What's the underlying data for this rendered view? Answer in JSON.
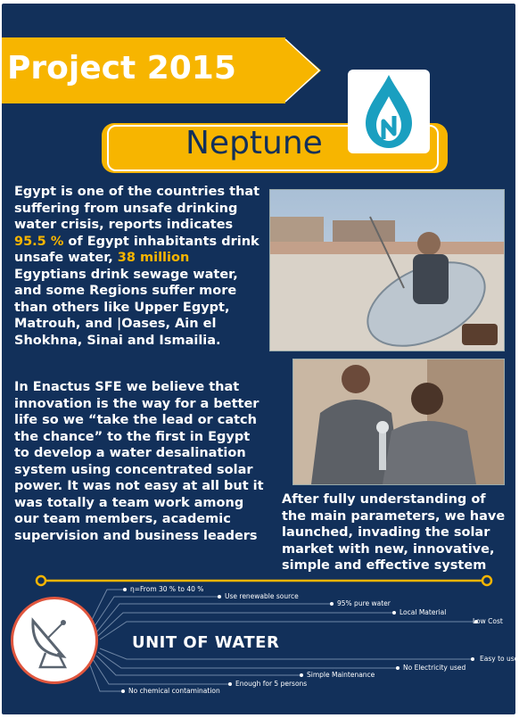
{
  "banner": {
    "title": "Project 2015"
  },
  "brand": {
    "name": "Neptune"
  },
  "intro": {
    "p1_a": "Egypt is one of the countries that suffering from unsafe drinking water crisis, reports indicates ",
    "p1_stat1": "95.5 %",
    "p1_b": " of Egypt inhabitants drink unsafe water, ",
    "p1_stat2": "38 million",
    "p1_c": " Egyptians drink sewage water, and some Regions suffer more than others like Upper Egypt, Matrouh, and |Oases, Ain el Shokhna, Sinai and Ismailia.",
    "p2": "In Enactus SFE we believe that innovation is the way for a better life so we “take the lead or catch the chance” to the first in Egypt to develop a water desalination system using concentrated solar power. It was not easy at all but it was totally a team work among our team members, academic supervision and business leaders",
    "p3": "After fully understanding of the main parameters, we have launched, invading the solar market with new, innovative, simple and effective system"
  },
  "infographic": {
    "center_label": "UNIT OF WATER",
    "features": [
      "η=From 30 % to 40 %",
      "Use renewable source",
      "95% pure water",
      "Local Material",
      "Low  Cost",
      "Easy to use",
      "No Electricity used",
      "Simple Maintenance",
      "Enough for 5 persons",
      "No chemical contamination"
    ]
  },
  "colors": {
    "navy": "#12305a",
    "gold": "#f7b500",
    "logo_teal": "#1a9fc0"
  },
  "icons": [
    "water-drop-logo",
    "satellite-dish-icon"
  ]
}
